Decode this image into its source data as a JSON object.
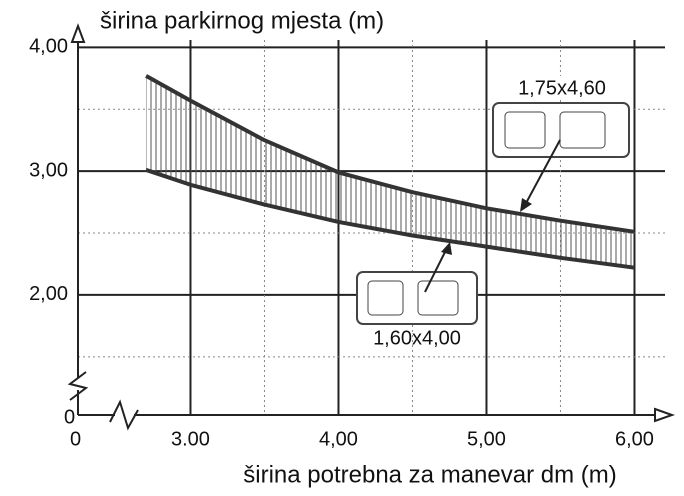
{
  "chart_data": {
    "type": "line",
    "title": "širina parkirnog mjesta (m)",
    "x_label": "širina potrebna za manevar dm (m)",
    "x_origin_label": "0",
    "y_origin_label": "0",
    "x": [
      2.7,
      3.0,
      3.5,
      4.0,
      4.5,
      5.0,
      5.5,
      6.0
    ],
    "series": [
      {
        "name": "1,75x4,60",
        "color": "#333333",
        "values": [
          3.77,
          3.57,
          3.25,
          2.99,
          2.83,
          2.7,
          2.6,
          2.51
        ]
      },
      {
        "name": "1,60x4,00",
        "color": "#333333",
        "values": [
          3.01,
          2.89,
          2.73,
          2.59,
          2.48,
          2.39,
          2.3,
          2.22
        ]
      }
    ],
    "xlim": [
      2.24,
      6.24
    ],
    "ylim": [
      1.03,
      4.1
    ],
    "xticks": [
      {
        "value": 3,
        "label": "3.00"
      },
      {
        "value": 4,
        "label": "4,00"
      },
      {
        "value": 5,
        "label": "5,00"
      },
      {
        "value": 6,
        "label": "6,00"
      }
    ],
    "yticks": [
      {
        "value": 2,
        "label": "2,00"
      },
      {
        "value": 3,
        "label": "3,00"
      },
      {
        "value": 4,
        "label": "4,00"
      }
    ],
    "x_minor_grid": [
      3.5,
      4.5,
      5.5
    ],
    "y_minor_grid": [
      1.5,
      2.5,
      3.5
    ],
    "grid": true
  }
}
